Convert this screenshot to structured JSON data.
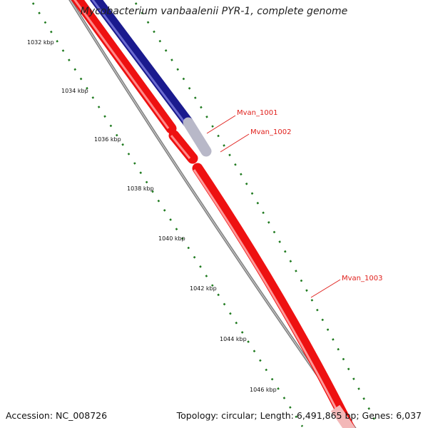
{
  "title": "Mycobacterium vanbaalenii PYR-1, complete genome",
  "footer": {
    "accession": "Accession: NC_008726",
    "summary": "Topology: circular; Length: 6,491,865 bp; Genes: 6,037"
  },
  "ruler": {
    "unit": "kbp",
    "labels": [
      "1032 kbp",
      "1034 kbp",
      "1036 kbp",
      "1038 kbp",
      "1040 kbp",
      "1042 kbp",
      "1044 kbp",
      "1046 kbp"
    ]
  },
  "genes": [
    {
      "name": "Mvan_1001",
      "strand": "forward"
    },
    {
      "name": "Mvan_1002",
      "strand": "reverse"
    },
    {
      "name": "Mvan_1003",
      "strand": "reverse"
    }
  ],
  "colors": {
    "forward_strand": "#1a1a8e",
    "reverse_strand": "#ee1111",
    "backbone": "#8a8a8a",
    "ticks": "#1f7a1f",
    "label": "#e0201c"
  }
}
